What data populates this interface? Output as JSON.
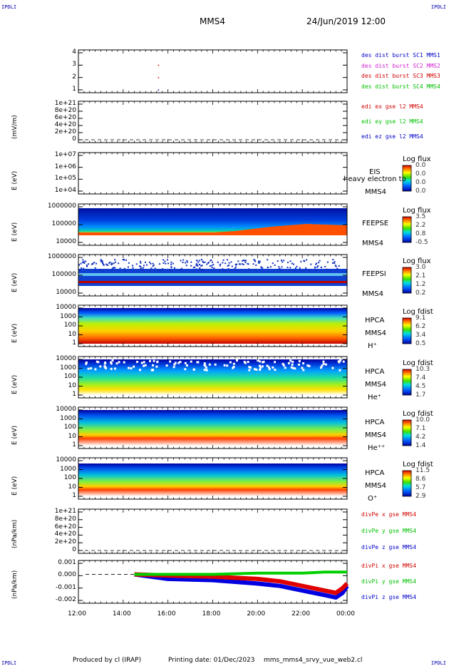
{
  "corners": {
    "tl": "IPDLI",
    "tr": "IPDLI",
    "bl": "IPDLI",
    "br": "IPDLI"
  },
  "header": {
    "title": "MMS4",
    "datetime": "24/Jun/2019 12:00"
  },
  "footer": {
    "produced": "Produced by cl (IRAP)",
    "printed": "Printing date: 01/Dec/2023",
    "file": "mms_mms4_srvy_vue_web2.cl"
  },
  "x_axis": {
    "ticks": [
      "12:00",
      "14:00",
      "16:00",
      "18:00",
      "20:00",
      "22:00",
      "00:00"
    ]
  },
  "panels": [
    {
      "id": "p1",
      "ylabel": "",
      "yticks": [
        "4",
        "3",
        "2",
        "1"
      ],
      "legend": [
        {
          "text": "des dist burst SC1 MMS1",
          "color": "#0000c8"
        },
        {
          "text": "des dist burst SC2 MMS2",
          "color": "#d020d0"
        },
        {
          "text": "des dist burst SC3 MMS3",
          "color": "#d00000"
        },
        {
          "text": "des dist burst SC4 MMS4",
          "color": "#00c000"
        }
      ]
    },
    {
      "id": "p2",
      "ylabel": "(mV/m)",
      "yticks": [
        "1e+21",
        "8e+20",
        "6e+20",
        "4e+20",
        "2e+20",
        "0"
      ],
      "legend": [
        {
          "text": "edi ex gse l2 MMS4",
          "color": "#d00000"
        },
        {
          "text": "edi ey gse l2 MMS4",
          "color": "#00c000"
        },
        {
          "text": "edi ez gse l2 MMS4",
          "color": "#0000c8"
        }
      ]
    },
    {
      "id": "p3",
      "ylabel": "E (eV)",
      "yticks": [
        "1e+07",
        "1e+06",
        "1e+05",
        "1e+04"
      ],
      "side": [
        "EIS",
        "heavy electron to",
        "MMS4"
      ],
      "cbtitle": "Log flux",
      "cbvals": [
        "0.0",
        "0.0",
        "0.0",
        "0.0"
      ]
    },
    {
      "id": "p4",
      "ylabel": "E (eV)",
      "yticks": [
        "1000000",
        "100000",
        "10000"
      ],
      "side": [
        "FEEPSE",
        "MMS4"
      ],
      "cbtitle": "Log flux",
      "cbvals": [
        "3.5",
        "2.2",
        "0.8",
        "-0.5"
      ]
    },
    {
      "id": "p5",
      "ylabel": "E (eV)",
      "yticks": [
        "1000000",
        "100000",
        "10000"
      ],
      "side": [
        "FEEPSI",
        "MMS4"
      ],
      "cbtitle": "Log flux",
      "cbvals": [
        "3.0",
        "2.1",
        "1.2",
        "0.2"
      ]
    },
    {
      "id": "p6",
      "ylabel": "E (eV)",
      "yticks": [
        "10000",
        "1000",
        "100",
        "10",
        "1"
      ],
      "side": [
        "HPCA",
        "MMS4",
        "H⁺"
      ],
      "cbtitle": "Log fdist",
      "cbvals": [
        "9.1",
        "6.2",
        "3.4",
        "0.5"
      ]
    },
    {
      "id": "p7",
      "ylabel": "E (eV)",
      "yticks": [
        "10000",
        "1000",
        "100",
        "10",
        "1"
      ],
      "side": [
        "HPCA",
        "MMS4",
        "He⁺"
      ],
      "cbtitle": "Log fdist",
      "cbvals": [
        "10.3",
        "7.4",
        "4.5",
        "1.7"
      ]
    },
    {
      "id": "p8",
      "ylabel": "E (eV)",
      "yticks": [
        "10000",
        "1000",
        "100",
        "10",
        "1"
      ],
      "side": [
        "HPCA",
        "MMS4",
        "He⁺⁺"
      ],
      "cbtitle": "Log fdist",
      "cbvals": [
        "10.0",
        "7.1",
        "4.2",
        "1.4"
      ]
    },
    {
      "id": "p9",
      "ylabel": "E (eV)",
      "yticks": [
        "10000",
        "1000",
        "100",
        "10",
        "1"
      ],
      "side": [
        "HPCA",
        "MMS4",
        "O⁺"
      ],
      "cbtitle": "Log fdist",
      "cbvals": [
        "11.5",
        "8.6",
        "5.7",
        "2.9"
      ]
    },
    {
      "id": "p10",
      "ylabel": "(nPa/km)",
      "yticks": [
        "1e+21",
        "8e+20",
        "6e+20",
        "4e+20",
        "2e+20",
        "0"
      ],
      "legend": [
        {
          "text": "divPe x gse MMS4",
          "color": "#d00000"
        },
        {
          "text": "divPe y gse MMS4",
          "color": "#00c000"
        },
        {
          "text": "divPe z gse MMS4",
          "color": "#0000c8"
        }
      ]
    },
    {
      "id": "p11",
      "ylabel": "(nPa/km)",
      "yticks": [
        "0.001",
        "0.000",
        "-0.001",
        "-0.002"
      ],
      "legend": [
        {
          "text": "divPi x gse MMS4",
          "color": "#d00000"
        },
        {
          "text": "divPi y gse MMS4",
          "color": "#00c000"
        },
        {
          "text": "divPi z gse MMS4",
          "color": "#0000c8"
        }
      ]
    }
  ],
  "chart_data": [
    {
      "type": "scatter",
      "panel": "p1",
      "ylim": [
        0.5,
        4.5
      ],
      "x_hours": [
        15.57,
        15.57,
        15.57
      ],
      "y": [
        3.0,
        2.0,
        1.0
      ],
      "series_colors": [
        "#d00000",
        "#d00000",
        "#0000c8"
      ]
    },
    {
      "type": "line",
      "panel": "p2",
      "ylim": [
        0,
        1e+21
      ]
    },
    {
      "type": "heatmap",
      "panel": "p3",
      "ylabel": "E (eV)",
      "ylim": [
        "1e+04",
        "1e+07"
      ],
      "log_y": true
    },
    {
      "type": "heatmap",
      "panel": "p4",
      "ylabel": "E (eV)",
      "ylim": [
        "10000",
        "1000000"
      ],
      "log_y": true,
      "colorbar": [
        -0.5,
        3.5
      ]
    },
    {
      "type": "heatmap",
      "panel": "p5",
      "ylabel": "E (eV)",
      "ylim": [
        "10000",
        "1000000"
      ],
      "log_y": true,
      "colorbar": [
        0.2,
        3.0
      ]
    },
    {
      "type": "heatmap",
      "panel": "p6",
      "ylabel": "E (eV)",
      "ylim": [
        "1",
        "10000"
      ],
      "log_y": true,
      "colorbar": [
        0.5,
        9.1
      ]
    },
    {
      "type": "heatmap",
      "panel": "p7",
      "ylabel": "E (eV)",
      "ylim": [
        "1",
        "10000"
      ],
      "log_y": true,
      "colorbar": [
        1.7,
        10.3
      ]
    },
    {
      "type": "heatmap",
      "panel": "p8",
      "ylabel": "E (eV)",
      "ylim": [
        "1",
        "10000"
      ],
      "log_y": true,
      "colorbar": [
        1.4,
        10.0
      ]
    },
    {
      "type": "heatmap",
      "panel": "p9",
      "ylabel": "E (eV)",
      "ylim": [
        "1",
        "10000"
      ],
      "log_y": true,
      "colorbar": [
        2.9,
        11.5
      ]
    },
    {
      "type": "line",
      "panel": "p10",
      "ylim": [
        0,
        1e+21
      ]
    },
    {
      "type": "line",
      "panel": "p11",
      "ylim": [
        -0.0025,
        0.0012
      ],
      "x_hours": [
        14.5,
        16,
        18,
        20,
        21,
        22,
        23,
        23.5,
        23.8,
        24
      ],
      "series": [
        {
          "name": "divPi x gse MMS4",
          "values": [
            0.0,
            -0.0001,
            -0.0002,
            -0.0004,
            -0.0006,
            -0.001,
            -0.0014,
            -0.0016,
            -0.0012,
            -0.0008
          ]
        },
        {
          "name": "divPi y gse MMS4",
          "values": [
            0.0,
            0.0,
            0.0,
            0.0001,
            0.0001,
            0.0001,
            0.0002,
            0.0002,
            0.0002,
            0.0002
          ]
        },
        {
          "name": "divPi z gse MMS4",
          "values": [
            0.0,
            -0.0004,
            -0.0005,
            -0.0008,
            -0.001,
            -0.0014,
            -0.0018,
            -0.002,
            -0.0016,
            -0.001
          ]
        }
      ]
    }
  ]
}
